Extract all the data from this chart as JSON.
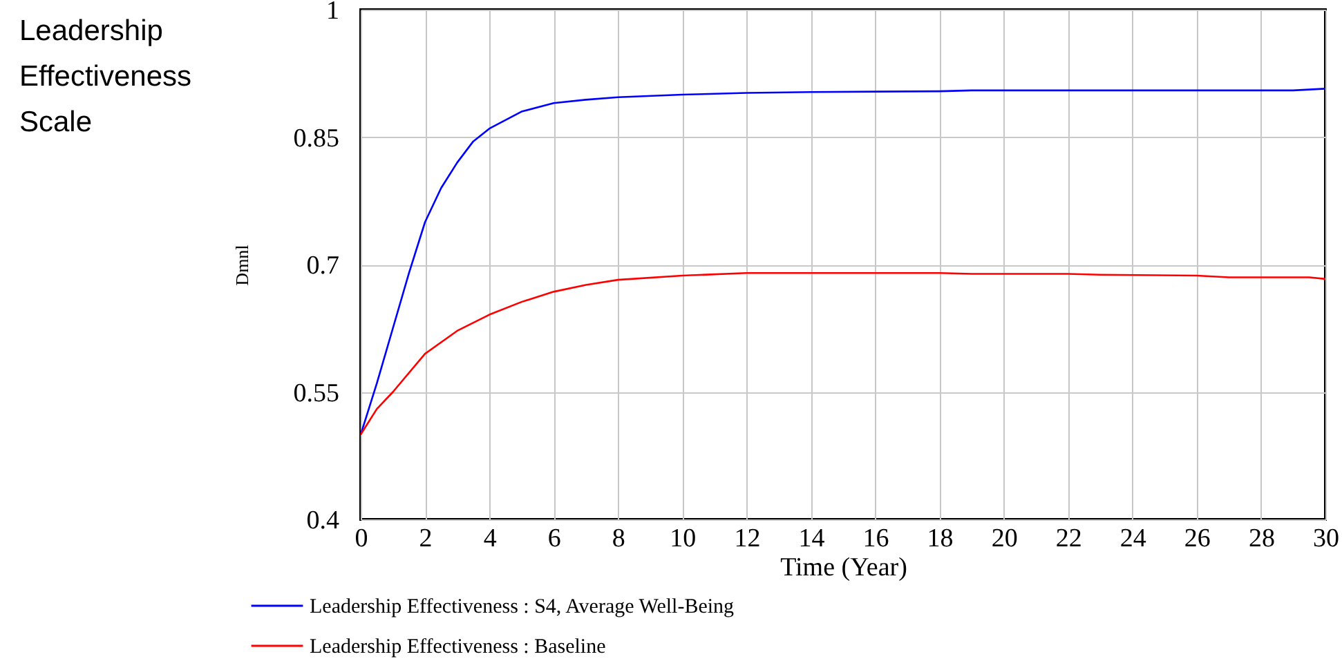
{
  "chart_data": {
    "type": "line",
    "title": "Leadership Effectiveness Scale",
    "xlabel": "Time (Year)",
    "ylabel": "Dmnl",
    "xlim": [
      0,
      30
    ],
    "ylim": [
      0.4,
      1
    ],
    "xticks": [
      0,
      2,
      4,
      6,
      8,
      10,
      12,
      14,
      16,
      18,
      20,
      22,
      24,
      26,
      28,
      30
    ],
    "yticks": [
      0.4,
      0.55,
      0.7,
      0.85,
      1
    ],
    "grid": true,
    "legend": "bottom",
    "series": [
      {
        "name": "Leadership Effectiveness : S4, Average Well-Being",
        "color": "#0000ff",
        "x": [
          0,
          0.5,
          1,
          1.5,
          2,
          2.5,
          3,
          3.5,
          4,
          5,
          6,
          7,
          8,
          10,
          12,
          14,
          18,
          19,
          29,
          30
        ],
        "values": [
          0.5,
          0.56,
          0.625,
          0.69,
          0.75,
          0.79,
          0.82,
          0.845,
          0.86,
          0.88,
          0.89,
          0.894,
          0.897,
          0.9,
          0.902,
          0.903,
          0.904,
          0.905,
          0.905,
          0.907
        ]
      },
      {
        "name": "Leadership Effectiveness : Baseline",
        "color": "#ff0000",
        "x": [
          0,
          0.5,
          1,
          2,
          3,
          4,
          5,
          6,
          7,
          8,
          10,
          12,
          18,
          19,
          22,
          23,
          26,
          27,
          29.5,
          30
        ],
        "values": [
          0.5,
          0.53,
          0.55,
          0.595,
          0.622,
          0.641,
          0.656,
          0.668,
          0.676,
          0.682,
          0.687,
          0.69,
          0.69,
          0.689,
          0.689,
          0.688,
          0.687,
          0.685,
          0.685,
          0.683
        ]
      }
    ]
  }
}
